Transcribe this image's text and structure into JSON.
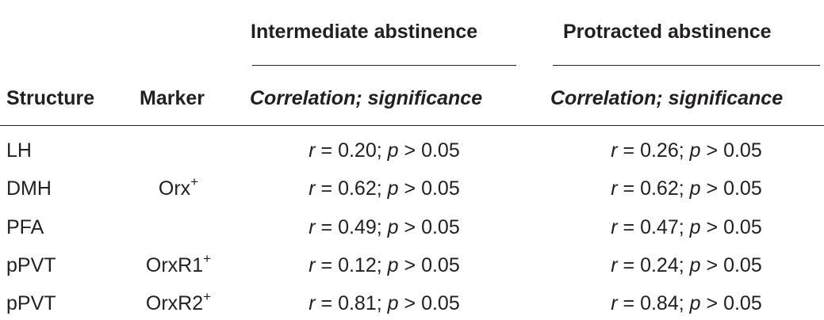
{
  "table": {
    "group_headers": [
      "Intermediate abstinence",
      "Protracted abstinence"
    ],
    "column_headers": [
      "Structure",
      "Marker",
      "Correlation; significance",
      "Correlation; significance"
    ],
    "rows": [
      {
        "structure": "LH",
        "marker": "",
        "marker_sup": "",
        "inter_r": "0.20",
        "inter_p": "0.05",
        "prot_r": "0.26",
        "prot_p": "0.05"
      },
      {
        "structure": "DMH",
        "marker": "Orx",
        "marker_sup": "+",
        "inter_r": "0.62",
        "inter_p": "0.05",
        "prot_r": "0.62",
        "prot_p": "0.05"
      },
      {
        "structure": "PFA",
        "marker": "",
        "marker_sup": "",
        "inter_r": "0.49",
        "inter_p": "0.05",
        "prot_r": "0.47",
        "prot_p": "0.05"
      },
      {
        "structure": "pPVT",
        "marker": "OrxR1",
        "marker_sup": "+",
        "inter_r": "0.12",
        "inter_p": "0.05",
        "prot_r": "0.24",
        "prot_p": "0.05"
      },
      {
        "structure": "pPVT",
        "marker": "OrxR2",
        "marker_sup": "+",
        "inter_r": "0.81",
        "inter_p": "0.05",
        "prot_r": "0.84",
        "prot_p": "0.05"
      }
    ],
    "symbols": {
      "r": "r",
      "p": "p",
      "eq": "=",
      "gt": ">",
      "sep": ";"
    }
  }
}
